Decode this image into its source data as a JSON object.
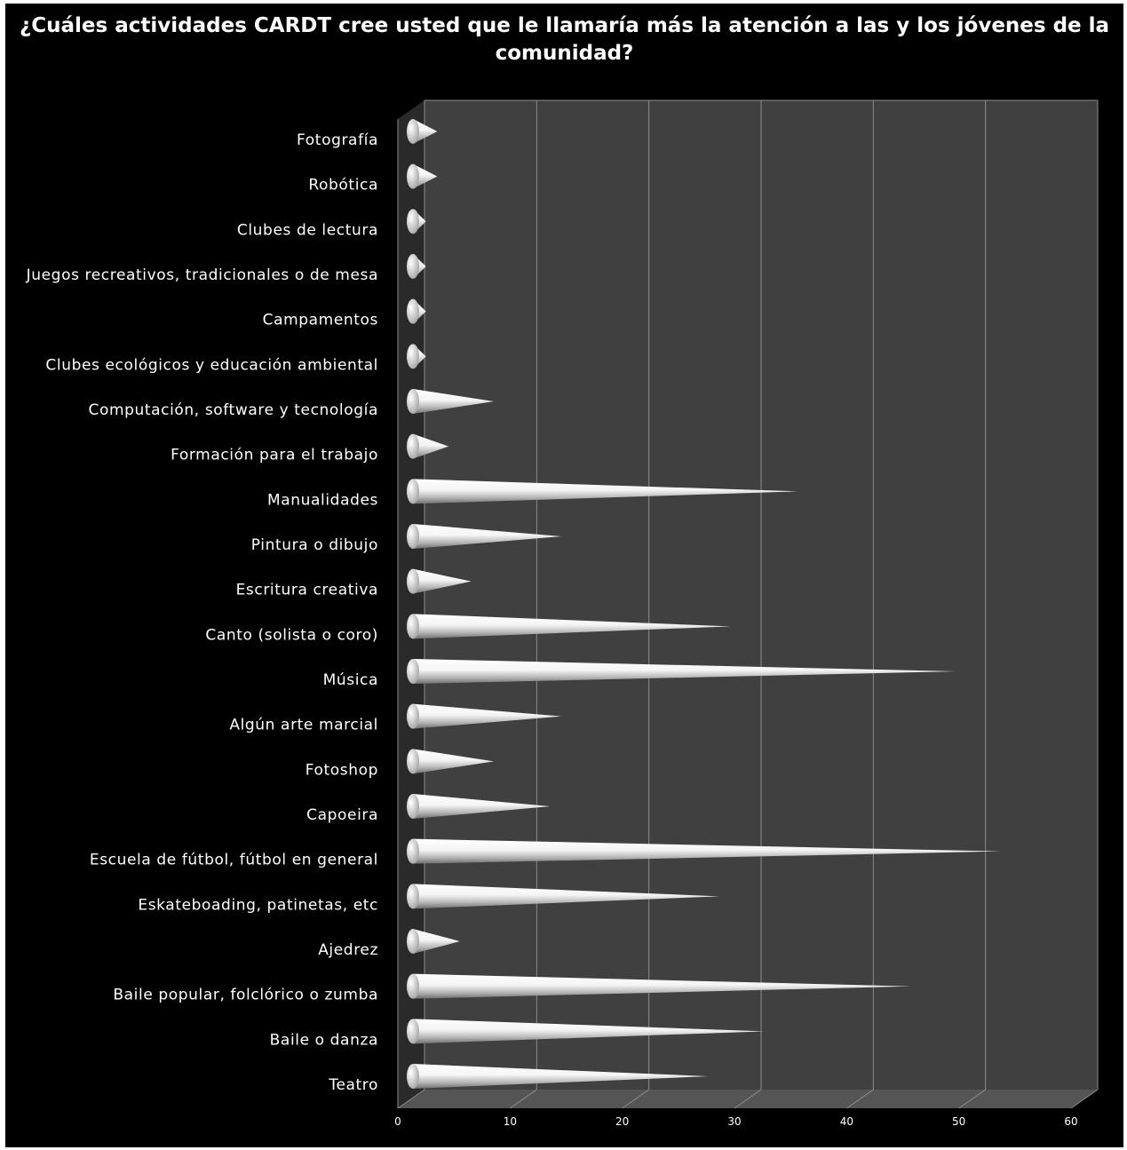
{
  "chart_data": {
    "type": "bar",
    "orientation": "horizontal",
    "bar_style": "cone-3d",
    "title": "¿Cuáles actividades CARDT cree usted que le llamaría más la atención a las y los jóvenes de la comunidad?",
    "categories": [
      "Fotografía",
      "Robótica",
      "Clubes de lectura",
      "Juegos recreativos, tradicionales o de mesa",
      "Campamentos",
      "Clubes ecológicos y educación ambiental",
      "Computación, software y tecnología",
      "Formación para el trabajo",
      "Manualidades",
      "Pintura o dibujo",
      "Escritura creativa",
      "Canto (solista o coro)",
      "Música",
      "Algún arte marcial",
      "Fotoshop",
      "Capoeira",
      "Escuela de fútbol, fútbol en general",
      "Eskateboading, patinetas, etc",
      "Ajedrez",
      "Baile popular, folclórico o zumba",
      "Baile o danza",
      "Teatro"
    ],
    "values": [
      2,
      2,
      1,
      1,
      1,
      1,
      7,
      3,
      34,
      13,
      5,
      28,
      48,
      13,
      7,
      12,
      52,
      27,
      4,
      44,
      31,
      26
    ],
    "x_ticks": [
      "0",
      "10",
      "20",
      "30",
      "40",
      "50",
      "60"
    ],
    "xlim": [
      0,
      60
    ],
    "grid": true,
    "legend": "none",
    "colors": {
      "background": "#000000",
      "plot_area": "#404040",
      "side_wall": "#2a2a2a",
      "floor": "#555555",
      "gridline": "#8c8c8c",
      "cone": "#ffffff",
      "text": "#ffffff"
    }
  }
}
